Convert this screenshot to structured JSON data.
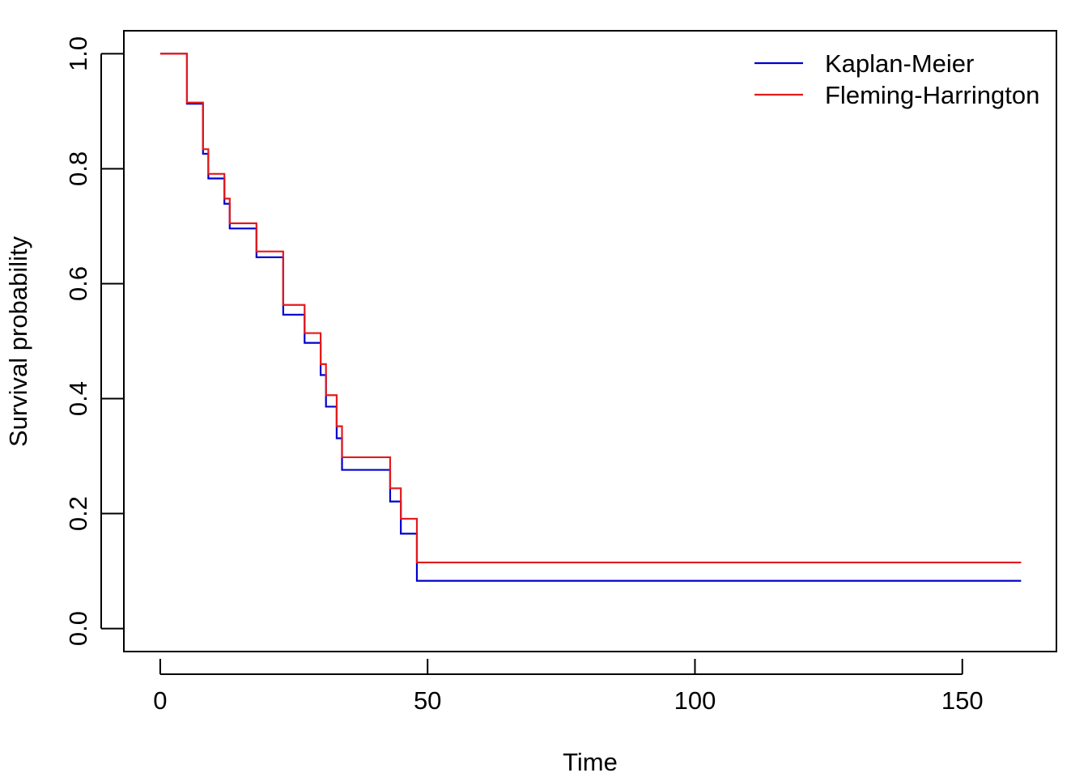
{
  "chart_data": {
    "type": "line",
    "title": "",
    "xlabel": "Time",
    "ylabel": "Survival probability",
    "xlim": [
      -6.8,
      167.6
    ],
    "ylim": [
      -0.04,
      1.04
    ],
    "x_ticks": [
      0,
      50,
      100,
      150
    ],
    "x_tick_labels": [
      "0",
      "50",
      "100",
      "150"
    ],
    "y_ticks": [
      0.0,
      0.2,
      0.4,
      0.6,
      0.8,
      1.0
    ],
    "y_tick_labels": [
      "0.0",
      "0.2",
      "0.4",
      "0.6",
      "0.8",
      "1.0"
    ],
    "grid": false,
    "legend_position": "top-right",
    "series": [
      {
        "name": "Kaplan-Meier",
        "color": "#0000CD",
        "step": true,
        "x": [
          0,
          5,
          8,
          8.5,
          9,
          12,
          13,
          18,
          23,
          27,
          30,
          31,
          33,
          34,
          43,
          45,
          48,
          161
        ],
        "y": [
          1.0,
          0.913,
          0.826,
          0.826,
          0.783,
          0.739,
          0.696,
          0.646,
          0.546,
          0.497,
          0.441,
          0.386,
          0.331,
          0.276,
          0.221,
          0.165,
          0.083,
          0.083
        ]
      },
      {
        "name": "Fleming-Harrington",
        "color": "#E31A1C",
        "step": true,
        "x": [
          0,
          5,
          8,
          8.5,
          9,
          12,
          13,
          18,
          23,
          27,
          30,
          31,
          33,
          34,
          43,
          45,
          48,
          161
        ],
        "y": [
          1.0,
          0.915,
          0.834,
          0.834,
          0.791,
          0.748,
          0.705,
          0.656,
          0.563,
          0.514,
          0.46,
          0.406,
          0.352,
          0.298,
          0.244,
          0.191,
          0.115,
          0.115
        ]
      }
    ]
  }
}
